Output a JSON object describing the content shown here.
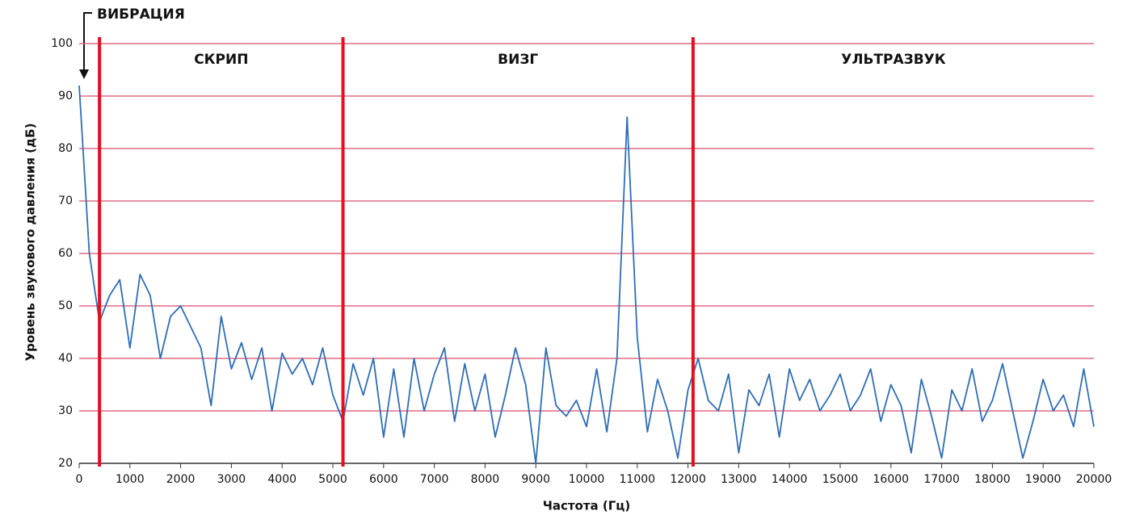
{
  "chart_data": {
    "type": "line",
    "annotations": [
      "ВИБРАЦИЯ",
      "СКРИП",
      "ВИЗГ",
      "УЛЬТРАЗВУК"
    ],
    "dividers": [
      400,
      5200,
      12100
    ],
    "divider_color": "#e3101e",
    "xlabel": "Частота (Гц)",
    "ylabel": "Уровень звукового давления (дБ)",
    "x": [
      0,
      200,
      400,
      600,
      800,
      1000,
      1200,
      1400,
      1600,
      1800,
      2000,
      2200,
      2400,
      2600,
      2800,
      3000,
      3200,
      3400,
      3600,
      3800,
      4000,
      4200,
      4400,
      4600,
      4800,
      5000,
      5200,
      5400,
      5600,
      5800,
      6000,
      6200,
      6400,
      6600,
      6800,
      7000,
      7200,
      7400,
      7600,
      7800,
      8000,
      8200,
      8400,
      8600,
      8800,
      9000,
      9200,
      9400,
      9600,
      9800,
      10000,
      10200,
      10400,
      10600,
      10800,
      11000,
      11200,
      11400,
      11600,
      11800,
      12000,
      12200,
      12400,
      12600,
      12800,
      13000,
      13200,
      13400,
      13600,
      13800,
      14000,
      14200,
      14400,
      14600,
      14800,
      15000,
      15200,
      15400,
      15600,
      15800,
      16000,
      16200,
      16400,
      16600,
      16800,
      17000,
      17200,
      17400,
      17600,
      17800,
      18000,
      18200,
      18400,
      18600,
      18800,
      19000,
      19200,
      19400,
      19600,
      19800,
      20000
    ],
    "series": [
      {
        "color": "#2f6db5",
        "values": [
          92,
          60,
          47,
          52,
          55,
          42,
          56,
          52,
          40,
          48,
          50,
          46,
          42,
          31,
          48,
          38,
          43,
          36,
          42,
          30,
          41,
          37,
          40,
          35,
          42,
          33,
          28,
          39,
          33,
          40,
          25,
          38,
          25,
          40,
          30,
          37,
          42,
          28,
          39,
          30,
          37,
          25,
          33,
          42,
          35,
          20,
          42,
          31,
          29,
          32,
          27,
          38,
          26,
          40,
          86,
          44,
          26,
          36,
          30,
          21,
          34,
          40,
          32,
          30,
          37,
          22,
          34,
          31,
          37,
          25,
          38,
          32,
          36,
          30,
          33,
          37,
          30,
          33,
          38,
          28,
          35,
          31,
          22,
          36,
          29,
          21,
          34,
          30,
          38,
          28,
          32,
          39,
          30,
          21,
          28,
          36,
          30,
          33,
          27,
          38,
          27
        ]
      }
    ],
    "xlim": [
      0,
      20000
    ],
    "xticks": [
      0,
      1000,
      2000,
      3000,
      4000,
      5000,
      6000,
      7000,
      8000,
      9000,
      10000,
      11000,
      12000,
      13000,
      14000,
      15000,
      16000,
      17000,
      18000,
      19000,
      20000
    ],
    "ylim": [
      20,
      100
    ],
    "yticks": [
      20,
      30,
      40,
      50,
      60,
      70,
      80,
      90,
      100
    ],
    "grid": true,
    "grid_color": "#e06a82"
  }
}
